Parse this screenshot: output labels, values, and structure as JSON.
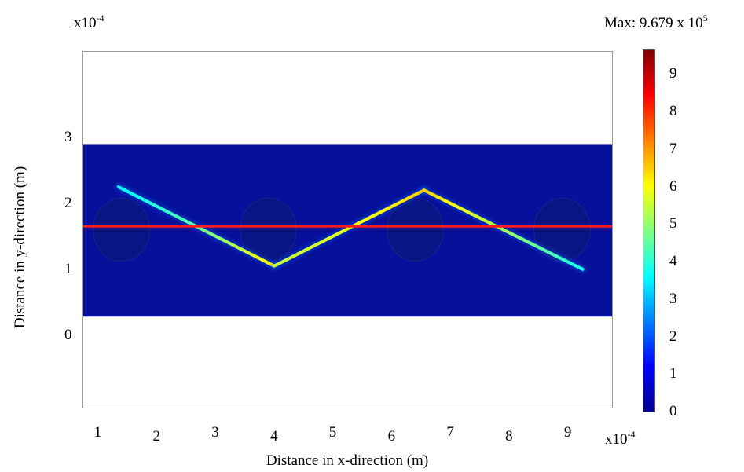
{
  "x_exponent": {
    "base": "x10",
    "exp": "-4"
  },
  "y_exponent": {
    "base": "x10",
    "exp": "-4"
  },
  "max_label": {
    "text": "Max: 9.679 x 10",
    "exp": "5"
  },
  "colors": {
    "red_line": "#ff1a1a",
    "domain_fill": "#06109a",
    "inclusion_fill": "#0a1585"
  },
  "chart_data": {
    "type": "heatmap",
    "title": "",
    "xlabel": "Distance in x-direction (m)",
    "ylabel": "Distance in y-direction (m)",
    "x_multiplier": "x10^-4",
    "y_multiplier": "x10^-4",
    "xlim": [
      0.75,
      9.75
    ],
    "ylim": [
      -1.1,
      4.3
    ],
    "x_ticks": [
      "1",
      "2",
      "3",
      "4",
      "5",
      "6",
      "7",
      "8",
      "9"
    ],
    "y_ticks": [
      "0",
      "1",
      "2",
      "3"
    ],
    "colorbar": {
      "max_label": "Max: 9.679 x 10^5",
      "ticks": [
        "0",
        "1",
        "2",
        "3",
        "4",
        "5",
        "6",
        "7",
        "8",
        "9"
      ],
      "range": [
        0,
        9.679
      ],
      "colormap": "jet"
    },
    "domain": {
      "x": [
        0.75,
        9.75
      ],
      "y": [
        0.28,
        2.9
      ]
    },
    "inclusions": [
      {
        "cx": 1.4,
        "cy": 1.6,
        "r": 0.48
      },
      {
        "cx": 3.9,
        "cy": 1.6,
        "r": 0.48
      },
      {
        "cx": 6.4,
        "cy": 1.6,
        "r": 0.48
      },
      {
        "cx": 8.9,
        "cy": 1.6,
        "r": 0.48
      }
    ],
    "zigzag_path": {
      "points": [
        [
          1.35,
          2.25
        ],
        [
          4.0,
          1.05
        ],
        [
          6.55,
          2.2
        ],
        [
          9.25,
          1.0
        ]
      ],
      "segment_value_profile": [
        [
          {
            "t": 0,
            "v": 3.5
          },
          {
            "t": 0.5,
            "v": 4.5
          },
          {
            "t": 1,
            "v": 6.2
          }
        ],
        [
          {
            "t": 0,
            "v": 5.5
          },
          {
            "t": 0.5,
            "v": 5.8
          },
          {
            "t": 1,
            "v": 6.5
          }
        ],
        [
          {
            "t": 0,
            "v": 6.5
          },
          {
            "t": 0.5,
            "v": 5.2
          },
          {
            "t": 1,
            "v": 3.8
          }
        ]
      ]
    },
    "red_line": {
      "y": 1.65,
      "x": [
        0.75,
        9.75
      ]
    }
  }
}
